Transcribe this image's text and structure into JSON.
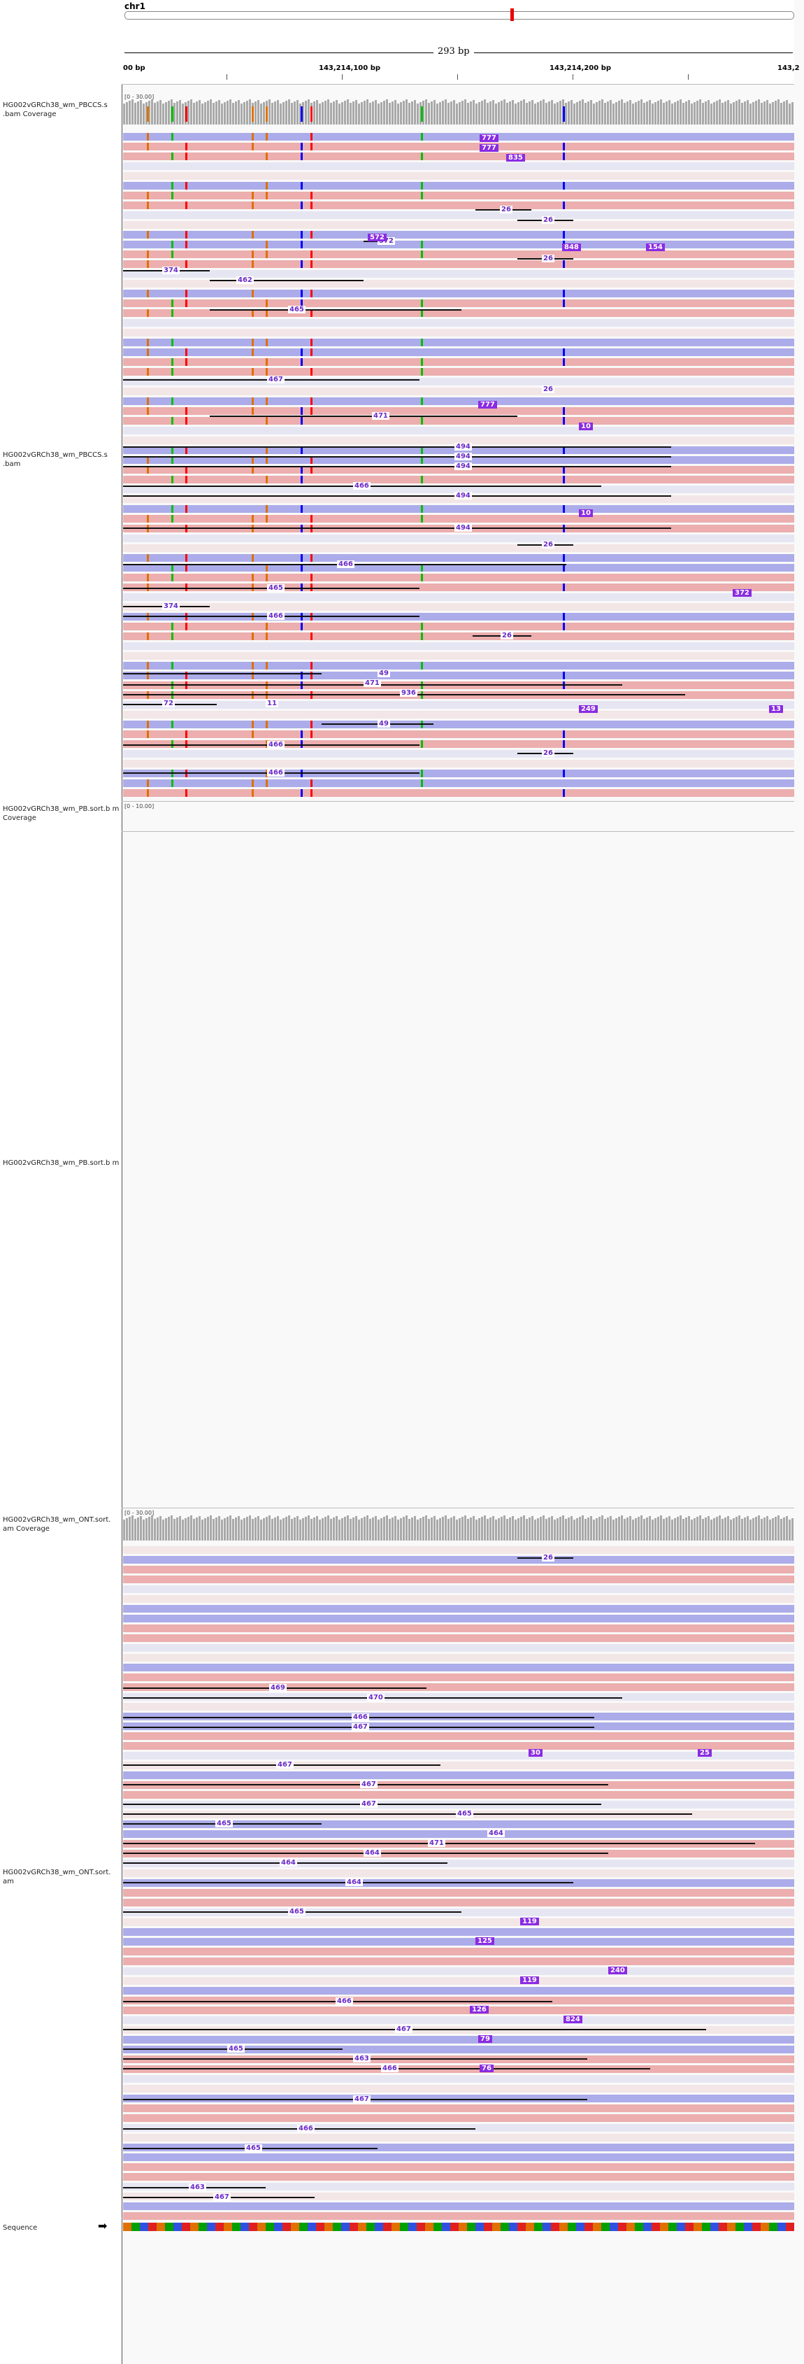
{
  "ruler": {
    "chromosome": "chr1",
    "span": "293 bp",
    "ticks": [
      "00 bp",
      "143,214,100 bp",
      "143,214,200 bp",
      "143,2"
    ]
  },
  "tracks": [
    {
      "id": "pbccs_cov",
      "label": "HG002vGRCh38_wm_PBCCS.s .bam Coverage",
      "range": "[0 - 30.00]"
    },
    {
      "id": "pbccs",
      "label": "HG002vGRCh38_wm_PBCCS.s .bam"
    },
    {
      "id": "pb_cov",
      "label": "HG002vGRCh38_wm_PB.sort.b m Coverage",
      "range": "[0 - 10.00]"
    },
    {
      "id": "pb",
      "label": "HG002vGRCh38_wm_PB.sort.b m"
    },
    {
      "id": "ont_cov",
      "label": "HG002vGRCh38_wm_ONT.sort. am Coverage",
      "range": "[0 - 30.00]"
    },
    {
      "id": "ont",
      "label": "HG002vGRCh38_wm_ONT.sort. am"
    },
    {
      "id": "sequence",
      "label": "Sequence"
    }
  ],
  "pbccs_numbers": [
    "26",
    "26",
    "572",
    "26",
    "374",
    "462",
    "465",
    "467",
    "26",
    "471",
    "494",
    "494",
    "494",
    "466",
    "494",
    "494",
    "26",
    "466",
    "465",
    "374",
    "466",
    "26",
    "49",
    "471",
    "936",
    "72",
    "11",
    "49",
    "466",
    "26",
    "466"
  ],
  "pbccs_badges": [
    "777",
    "777",
    "835",
    "572",
    "848",
    "154",
    "777",
    "10",
    "10",
    "372",
    "249",
    "13"
  ],
  "ont_numbers": [
    "26",
    "469",
    "470",
    "466",
    "467",
    "467",
    "467",
    "467",
    "465",
    "465",
    "464",
    "471",
    "464",
    "464",
    "464",
    "465",
    "466",
    "467",
    "465",
    "463",
    "466",
    "467",
    "466",
    "465",
    "463",
    "467",
    "467"
  ],
  "ont_badges": [
    "30",
    "25",
    "119",
    "125",
    "240",
    "119",
    "126",
    "824",
    "79",
    "76"
  ],
  "colors": {
    "pink_read": "#ecaeae",
    "blue_read": "#acacea",
    "coverage": "#a9a9a9",
    "insertion": "#8a2be2",
    "snp_blue": "#0000ff",
    "snp_red": "#ff0000",
    "snp_green": "#00c000",
    "snp_orange": "#e07000"
  }
}
